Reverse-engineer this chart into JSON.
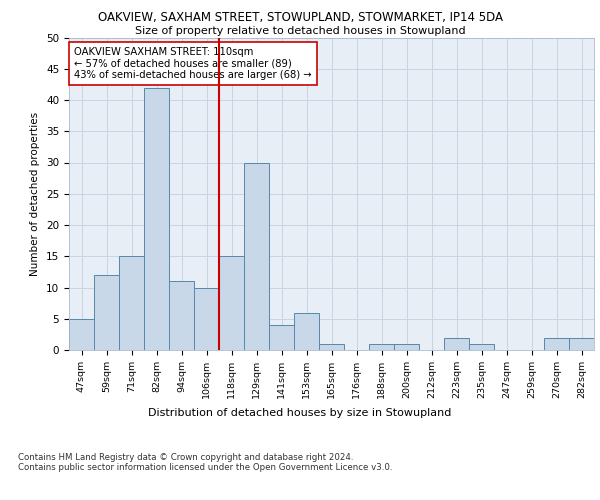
{
  "title_line1": "OAKVIEW, SAXHAM STREET, STOWUPLAND, STOWMARKET, IP14 5DA",
  "title_line2": "Size of property relative to detached houses in Stowupland",
  "xlabel": "Distribution of detached houses by size in Stowupland",
  "ylabel": "Number of detached properties",
  "categories": [
    "47sqm",
    "59sqm",
    "71sqm",
    "82sqm",
    "94sqm",
    "106sqm",
    "118sqm",
    "129sqm",
    "141sqm",
    "153sqm",
    "165sqm",
    "176sqm",
    "188sqm",
    "200sqm",
    "212sqm",
    "223sqm",
    "235sqm",
    "247sqm",
    "259sqm",
    "270sqm",
    "282sqm"
  ],
  "values": [
    5,
    12,
    15,
    42,
    11,
    10,
    15,
    30,
    4,
    6,
    1,
    0,
    1,
    1,
    0,
    2,
    1,
    0,
    0,
    2,
    2
  ],
  "bar_color": "#c8d8e8",
  "bar_edge_color": "#5588aa",
  "bar_linewidth": 0.7,
  "grid_color": "#c8d4e4",
  "background_color": "#e8eef6",
  "vline_x": 5.5,
  "vline_color": "#cc0000",
  "annotation_text": "OAKVIEW SAXHAM STREET: 110sqm\n← 57% of detached houses are smaller (89)\n43% of semi-detached houses are larger (68) →",
  "annotation_box_color": "white",
  "annotation_box_edge_color": "#cc0000",
  "footnote": "Contains HM Land Registry data © Crown copyright and database right 2024.\nContains public sector information licensed under the Open Government Licence v3.0.",
  "ylim": [
    0,
    50
  ],
  "yticks": [
    0,
    5,
    10,
    15,
    20,
    25,
    30,
    35,
    40,
    45,
    50
  ]
}
